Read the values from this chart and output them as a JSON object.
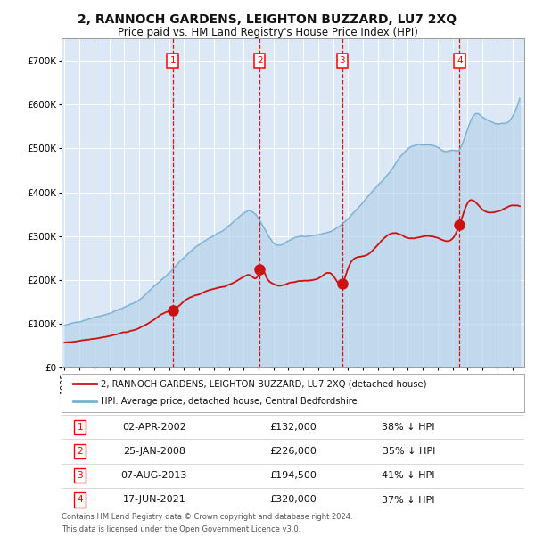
{
  "title": "2, RANNOCH GARDENS, LEIGHTON BUZZARD, LU7 2XQ",
  "subtitle": "Price paid vs. HM Land Registry's House Price Index (HPI)",
  "title_fontsize": 10,
  "subtitle_fontsize": 8.5,
  "bg_color": "#dce8f5",
  "grid_color": "#ffffff",
  "hpi_color": "#7ab0d4",
  "hpi_fill_color": "#b8d4ea",
  "price_color": "#cc1111",
  "marker_color": "#cc1111",
  "vline_color": "#cc0000",
  "legend_label_price": "2, RANNOCH GARDENS, LEIGHTON BUZZARD, LU7 2XQ (detached house)",
  "legend_label_hpi": "HPI: Average price, detached house, Central Bedfordshire",
  "transactions": [
    {
      "num": 1,
      "date": "02-APR-2002",
      "price": 132000,
      "year": 2002.25,
      "hpi_pct": "38% ↓ HPI"
    },
    {
      "num": 2,
      "date": "25-JAN-2008",
      "price": 226000,
      "year": 2008.07,
      "hpi_pct": "35% ↓ HPI"
    },
    {
      "num": 3,
      "date": "07-AUG-2013",
      "price": 194500,
      "year": 2013.6,
      "hpi_pct": "41% ↓ HPI"
    },
    {
      "num": 4,
      "date": "17-JUN-2021",
      "price": 320000,
      "year": 2021.46,
      "hpi_pct": "37% ↓ HPI"
    }
  ],
  "footer_line1": "Contains HM Land Registry data © Crown copyright and database right 2024.",
  "footer_line2": "This data is licensed under the Open Government Licence v3.0.",
  "ylim": [
    0,
    750000
  ],
  "yticks": [
    0,
    100000,
    200000,
    300000,
    400000,
    500000,
    600000,
    700000
  ],
  "xlim_start": 1994.8,
  "xlim_end": 2025.8,
  "hpi_points_x": [
    1995,
    1996,
    1997,
    1998,
    1999,
    2000,
    2001,
    2002,
    2003,
    2004,
    2005,
    2006,
    2007,
    2007.5,
    2008,
    2008.5,
    2009,
    2009.5,
    2010,
    2011,
    2012,
    2013,
    2014,
    2015,
    2016,
    2017,
    2017.5,
    2018,
    2018.5,
    2019,
    2020,
    2020.5,
    2021,
    2021.5,
    2022,
    2022.5,
    2023,
    2023.5,
    2024,
    2024.5,
    2025
  ],
  "hpi_points_y": [
    97000,
    105000,
    117000,
    128000,
    142000,
    158000,
    190000,
    220000,
    255000,
    285000,
    305000,
    325000,
    355000,
    360000,
    340000,
    310000,
    285000,
    280000,
    290000,
    300000,
    305000,
    315000,
    340000,
    375000,
    415000,
    455000,
    480000,
    495000,
    505000,
    505000,
    500000,
    490000,
    490000,
    495000,
    540000,
    575000,
    570000,
    560000,
    555000,
    555000,
    570000
  ],
  "price_points_x": [
    1995,
    1996,
    1997,
    1998,
    1999,
    2000,
    2001,
    2002,
    2002.25,
    2003,
    2004,
    2005,
    2006,
    2007,
    2007.5,
    2008,
    2008.07,
    2008.5,
    2009,
    2009.5,
    2010,
    2011,
    2012,
    2013,
    2013.6,
    2014,
    2015,
    2016,
    2017,
    2018,
    2019,
    2020,
    2021,
    2021.46,
    2022,
    2023,
    2024,
    2025
  ],
  "price_points_y": [
    57000,
    62000,
    69000,
    76000,
    84000,
    94000,
    113000,
    131000,
    132000,
    152000,
    170000,
    182000,
    192000,
    210000,
    213000,
    218000,
    226000,
    212000,
    195000,
    191000,
    197000,
    203000,
    207000,
    213000,
    194500,
    230000,
    255000,
    282000,
    308000,
    296000,
    296000,
    291000,
    289000,
    320000,
    370000,
    355000,
    350000,
    365000
  ]
}
